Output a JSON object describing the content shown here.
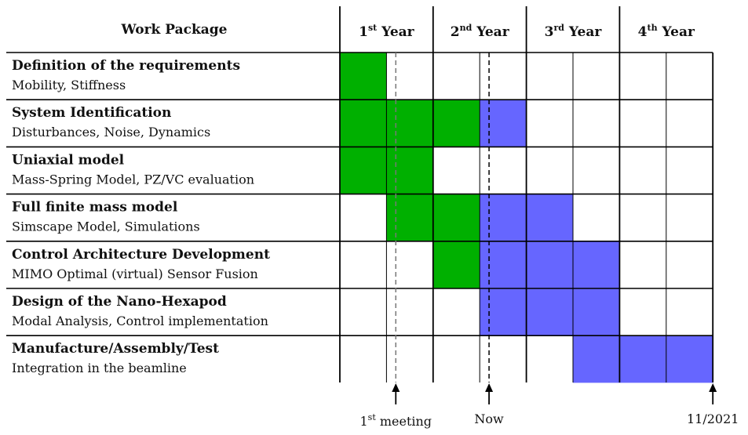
{
  "header": {
    "work_package_label": "Work Package",
    "years": [
      {
        "num": "1",
        "sup": "st",
        "word": "Year"
      },
      {
        "num": "2",
        "sup": "nd",
        "word": "Year"
      },
      {
        "num": "3",
        "sup": "rd",
        "word": "Year"
      },
      {
        "num": "4",
        "sup": "th",
        "word": "Year"
      }
    ]
  },
  "colors": {
    "done": "#00b000",
    "planned": "#6666ff",
    "grid": "#000000"
  },
  "work_packages": [
    {
      "title": "Definition of the requirements",
      "subtitle": "Mobility, Stiffness",
      "cells": [
        "done",
        "",
        "",
        "",
        "",
        "",
        "",
        ""
      ]
    },
    {
      "title": "System Identification",
      "subtitle": "Disturbances, Noise, Dynamics",
      "cells": [
        "done",
        "done",
        "done",
        "planned",
        "",
        "",
        "",
        ""
      ]
    },
    {
      "title": "Uniaxial model",
      "subtitle": "Mass-Spring Model, PZ/VC evaluation",
      "cells": [
        "done",
        "done",
        "",
        "",
        "",
        "",
        "",
        ""
      ]
    },
    {
      "title": "Full finite mass model",
      "subtitle": "Simscape Model, Simulations",
      "cells": [
        "",
        "done",
        "done",
        "planned",
        "planned",
        "",
        "",
        ""
      ]
    },
    {
      "title": "Control Architecture Development",
      "subtitle": "MIMO Optimal (virtual) Sensor Fusion",
      "cells": [
        "",
        "",
        "done",
        "planned",
        "planned",
        "planned",
        "",
        ""
      ]
    },
    {
      "title": "Design of the Nano-Hexapod",
      "subtitle": "Modal Analysis, Control implementation",
      "cells": [
        "",
        "",
        "",
        "planned",
        "planned",
        "planned",
        "",
        ""
      ]
    },
    {
      "title": "Manufacture/Assembly/Test",
      "subtitle": "Integration in the beamline",
      "cells": [
        "",
        "",
        "",
        "",
        "",
        "planned",
        "planned",
        "planned"
      ]
    }
  ],
  "markers": [
    {
      "id": "first-meeting",
      "label_num": "1",
      "label_sup": "st",
      "label_text": " meeting",
      "semester_pos": 1.2,
      "line": "dashed-gray"
    },
    {
      "id": "now",
      "label_num": "",
      "label_sup": "",
      "label_text": "Now",
      "semester_pos": 3.2,
      "line": "dashed-black"
    },
    {
      "id": "end",
      "label_num": "",
      "label_sup": "",
      "label_text": "11/2021",
      "semester_pos": 8.0,
      "line": "none"
    }
  ]
}
